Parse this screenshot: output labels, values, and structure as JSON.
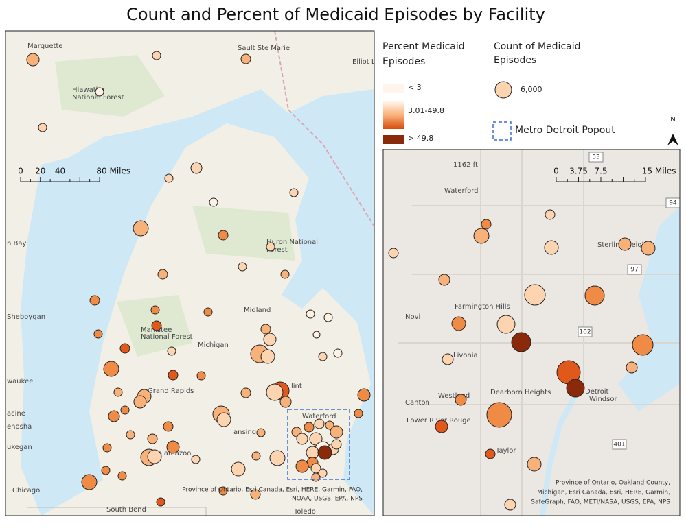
{
  "title": "Count and Percent of Medicaid Episodes by Facility",
  "legend": {
    "percent_title": [
      "Percent Medicaid",
      "Episodes"
    ],
    "percent_classes": [
      "< 3",
      "3.01-49.8",
      "> 49.8"
    ],
    "count_title": [
      "Count of Medicaid",
      "Episodes"
    ],
    "count_example": "6,000",
    "popout": "Metro Detroit Popout",
    "north": "N"
  },
  "main_map": {
    "scale": [
      "0",
      "20",
      "40",
      "80 Miles"
    ],
    "places": [
      "Marquette",
      "Sault Ste Marie",
      "Elliot L",
      "Hiawatha",
      "National Forest",
      "Huron National",
      "Forest",
      "n Bay",
      "Sheboygan",
      "Manistee",
      "National Forest",
      "Midland",
      "Michigan",
      "Grand Rapids",
      "waukee",
      "acine",
      "enosha",
      "ukegan",
      "Chicago",
      "South Bend",
      "Toledo",
      "ansing",
      "alamazoo",
      "Waterford",
      "lint"
    ],
    "attribution": [
      "Province of Ontario, Esri Canada, Esri, HERE, Garmin, FAO,",
      "NOAA, USGS, EPA, NPS"
    ]
  },
  "inset_map": {
    "scale": [
      "0",
      "3.75",
      "7.5",
      "15 Miles"
    ],
    "places": [
      "1162 ft",
      "Waterford",
      "Sterling Heigh",
      "Farmington Hills",
      "Novi",
      "Livonia",
      "Westland",
      "Dearborn Heights",
      "Canton",
      "Lower River Rouge",
      "Taylor",
      "Detroit",
      "Windsor"
    ],
    "shields": [
      "53",
      "97",
      "102",
      "94",
      "401"
    ],
    "attribution": [
      "Province of Ontario, Oakland County,",
      "Michigan, Esri Canada, Esri, HERE, Garmin,",
      "SafeGraph, FAO, METI/NASA, USGS, EPA, NPS"
    ]
  }
}
